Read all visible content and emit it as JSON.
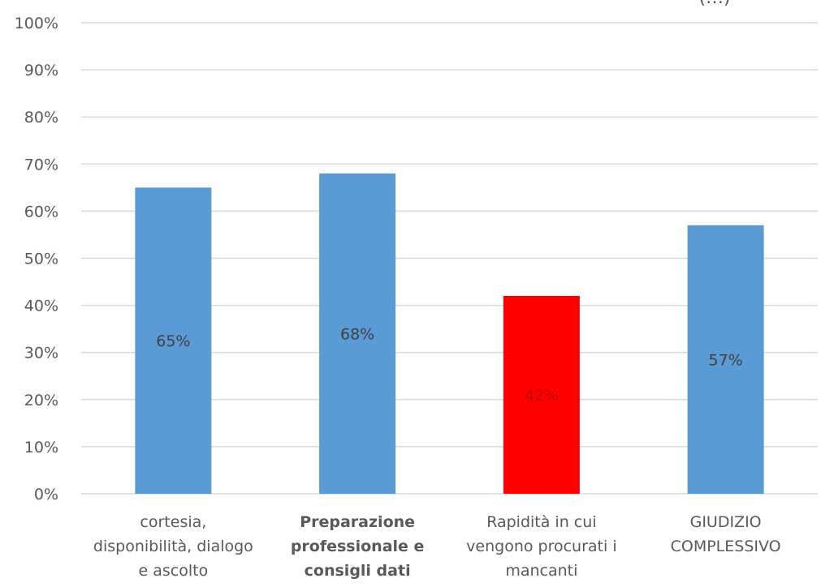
{
  "chart_data": {
    "type": "bar",
    "title": "",
    "xlabel": "",
    "ylabel": "",
    "ylim": [
      0,
      100
    ],
    "ytick_values": [
      0,
      10,
      20,
      30,
      40,
      50,
      60,
      70,
      80,
      90,
      100
    ],
    "ytick_labels": [
      "0%",
      "10%",
      "20%",
      "30%",
      "40%",
      "50%",
      "60%",
      "70%",
      "80%",
      "90%",
      "100%"
    ],
    "grid": true,
    "legend": "none",
    "categories": [
      [
        "cortesia,",
        "disponibilità, dialogo",
        "e ascolto"
      ],
      [
        "Preparazione",
        "professionale e",
        "consigli dati"
      ],
      [
        "Rapidità in cui",
        "vengono procurati i",
        "mancanti"
      ],
      [
        "GIUDIZIO",
        "COMPLESSIVO"
      ]
    ],
    "category_bold": [
      false,
      true,
      false,
      false
    ],
    "values": [
      65,
      68,
      42,
      57
    ],
    "data_labels": [
      "65%",
      "68%",
      "42%",
      "57%"
    ],
    "bar_colors": [
      "#5b9bd5",
      "#5b9bd5",
      "#ff0000",
      "#5b9bd5"
    ],
    "title_fragment": "(…)"
  }
}
